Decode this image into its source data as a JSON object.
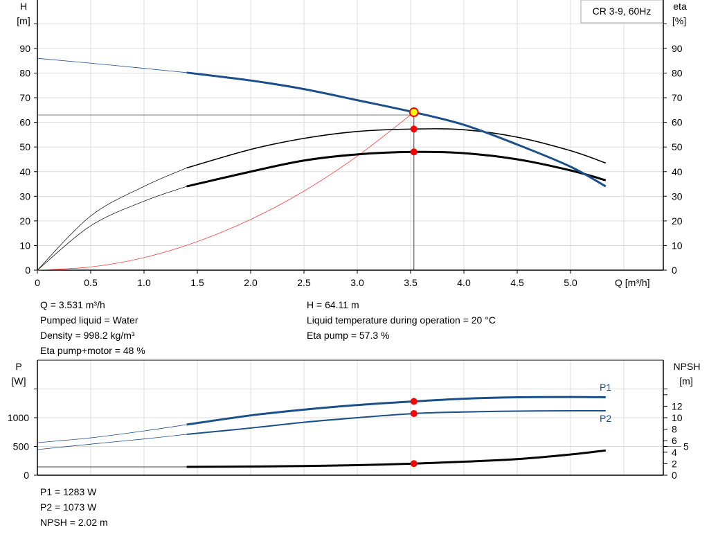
{
  "chart_data": [
    {
      "type": "line",
      "title": "CR 3-9, 60Hz",
      "xlabel": "Q [m³/h]",
      "ylabel": "H\n[m]",
      "ylabel_right": "eta\n[%]",
      "xlim": [
        0,
        5.87
      ],
      "ylim": [
        0,
        100
      ],
      "xticks": [
        "0",
        "0.5",
        "1.0",
        "1.5",
        "2.0",
        "2.5",
        "3.0",
        "3.5",
        "4.0",
        "4.5",
        "5.0"
      ],
      "yticks": [
        0,
        10,
        20,
        30,
        40,
        50,
        60,
        70,
        80,
        90
      ],
      "grid": true,
      "colors": {
        "head": "#1a4f8a",
        "eta": "#000000",
        "system": "#ff4040",
        "point": "#ff0000",
        "duty_point": "#ffff00"
      },
      "series": [
        {
          "key": "head",
          "x": [
            0,
            0.7,
            1.4,
            2.0,
            2.5,
            3.0,
            3.531,
            4.0,
            4.5,
            5.0,
            5.33
          ],
          "y": [
            86,
            83.2,
            80.2,
            77,
            73.5,
            69,
            64.11,
            59,
            51,
            42,
            34
          ],
          "thick_from": 1.4
        },
        {
          "key": "eta_pump",
          "x": [
            0,
            0.5,
            1.0,
            1.4,
            2.0,
            2.5,
            3.0,
            3.531,
            4.0,
            4.5,
            5.0,
            5.33
          ],
          "y": [
            0,
            22,
            34,
            41.5,
            49,
            53.5,
            56.3,
            57.3,
            57,
            54,
            48.5,
            43.5
          ],
          "thick_from": 1.4,
          "thin_width": true
        },
        {
          "key": "eta_pump_motor",
          "x": [
            0,
            0.5,
            1.0,
            1.4,
            2.0,
            2.5,
            3.0,
            3.531,
            4.0,
            4.5,
            5.0,
            5.33
          ],
          "y": [
            0,
            18,
            28,
            34,
            40,
            44.5,
            47,
            48,
            47.5,
            45,
            40.5,
            36.5
          ],
          "thick_from": 1.4
        },
        {
          "key": "system",
          "x": [
            0,
            0.5,
            1.0,
            1.5,
            2.0,
            2.5,
            3.0,
            3.531
          ],
          "y": [
            0,
            1.3,
            5.1,
            11.6,
            20.6,
            32.1,
            46.3,
            64.11
          ]
        }
      ],
      "duty_point": {
        "Q": 3.531,
        "H": 64.11,
        "eta_pump": 57.3,
        "eta_pump_motor": 48
      }
    },
    {
      "type": "line",
      "ylabel": "P\n[W]",
      "ylabel_right": "NPSH\n[m]",
      "xlim": [
        0,
        5.87
      ],
      "ylim": [
        0,
        2000
      ],
      "ylim_right": [
        0,
        20
      ],
      "yticks": [
        0,
        500,
        1000,
        1500
      ],
      "yticklabels": [
        "0",
        "500",
        "1000",
        ""
      ],
      "yticks_right": [
        0,
        2,
        4,
        5,
        6,
        8,
        10,
        12,
        14,
        15
      ],
      "yticklabels_right": [
        "0",
        "2",
        "4",
        "5",
        "6",
        "8",
        "10",
        "12",
        "",
        ""
      ],
      "grid": true,
      "series": [
        {
          "key": "P1",
          "name": "P1",
          "x": [
            0,
            0.5,
            1.0,
            1.4,
            2.0,
            2.5,
            3.0,
            3.531,
            4.0,
            4.5,
            5.0,
            5.33
          ],
          "y": [
            566,
            650,
            770,
            880,
            1040,
            1140,
            1220,
            1283,
            1330,
            1355,
            1360,
            1355
          ],
          "thick_from": 1.4
        },
        {
          "key": "P2",
          "name": "P2",
          "x": [
            0,
            0.5,
            1.0,
            1.4,
            2.0,
            2.5,
            3.0,
            3.531,
            4.0,
            4.5,
            5.0,
            5.33
          ],
          "y": [
            446,
            540,
            630,
            711,
            820,
            920,
            1000,
            1073,
            1100,
            1115,
            1120,
            1120
          ],
          "thick_from": 1.4
        },
        {
          "key": "NPSH",
          "axis": "right",
          "x": [
            0,
            1.4,
            2.0,
            2.5,
            3.0,
            3.531,
            4.0,
            4.5,
            5.0,
            5.33
          ],
          "y": [
            1.45,
            1.45,
            1.5,
            1.6,
            1.75,
            2.02,
            2.35,
            2.8,
            3.6,
            4.3
          ],
          "thick_from": 1.4
        }
      ],
      "duty_point": {
        "Q": 3.531,
        "P1": 1283,
        "P2": 1073,
        "NPSH": 2.02
      }
    }
  ],
  "info_top": {
    "col1": [
      "Q = 3.531 m³/h",
      "Pumped liquid = Water",
      "Density = 998.2 kg/m³",
      "Eta pump+motor = 48 %"
    ],
    "col2": [
      "H = 64.11 m",
      "Liquid temperature during operation = 20 °C",
      "Eta pump = 57.3 %"
    ]
  },
  "info_bottom": [
    "P1 = 1283 W",
    "P2 = 1073 W",
    "NPSH = 2.02 m"
  ]
}
